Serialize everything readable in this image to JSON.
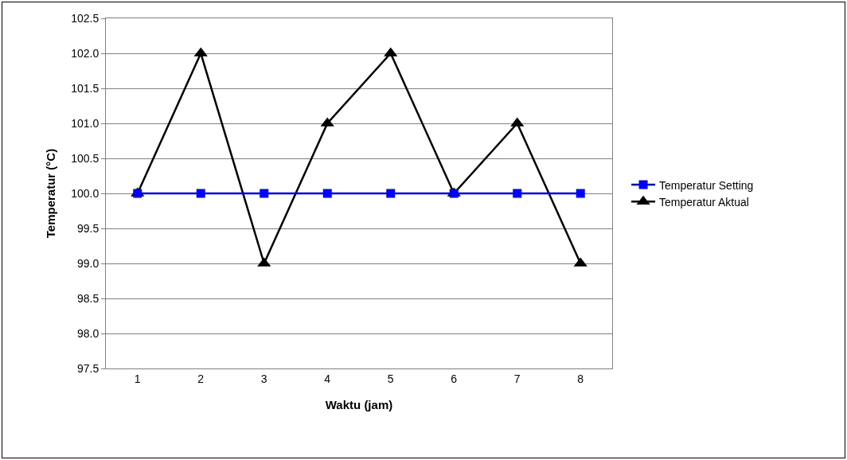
{
  "chart_data": {
    "type": "line",
    "xlabel": "Waktu (jam)",
    "ylabel": "Temperatur (°C)",
    "categories": [
      "1",
      "2",
      "3",
      "4",
      "5",
      "6",
      "7",
      "8"
    ],
    "series": [
      {
        "name": "Temperatur Setting",
        "color": "#0000ff",
        "marker": "square",
        "values": [
          100,
          100,
          100,
          100,
          100,
          100,
          100,
          100
        ]
      },
      {
        "name": "Temperatur Aktual",
        "color": "#000000",
        "marker": "triangle",
        "values": [
          100,
          102,
          99,
          101,
          102,
          100,
          101,
          99
        ]
      }
    ],
    "ylim": [
      97.5,
      102.5
    ],
    "yticks": [
      {
        "value": 97.5,
        "label": "97.5"
      },
      {
        "value": 98,
        "label": "98.0"
      },
      {
        "value": 98.5,
        "label": "98.5"
      },
      {
        "value": 99,
        "label": "99.0"
      },
      {
        "value": 99.5,
        "label": "99.5"
      },
      {
        "value": 100,
        "label": "100.0"
      },
      {
        "value": 100.5,
        "label": "100.5"
      },
      {
        "value": 101,
        "label": "101.0"
      },
      {
        "value": 101.5,
        "label": "101.5"
      },
      {
        "value": 102,
        "label": "102.0"
      },
      {
        "value": 102.5,
        "label": "102.5"
      }
    ],
    "grid": "y",
    "legend": "right",
    "line_style": "solid"
  }
}
